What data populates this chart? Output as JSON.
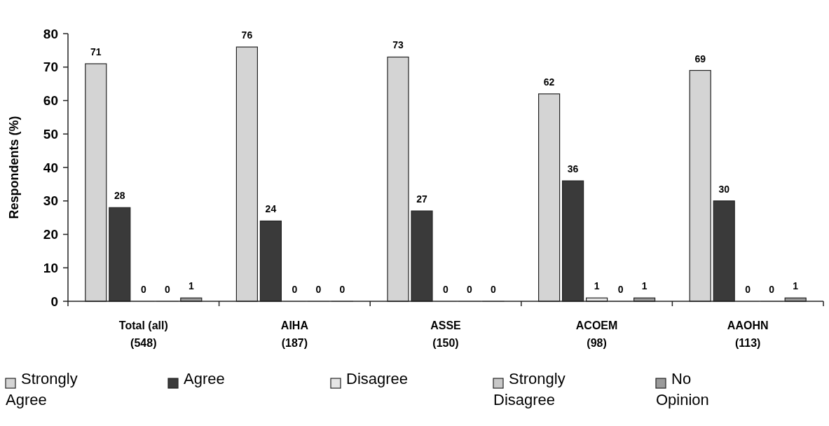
{
  "chart_data": {
    "type": "bar",
    "ylabel": "Respondents (%)",
    "categories": [
      "Total (all)\n(548)",
      "AIHA\n(187)",
      "ASSE\n(150)",
      "ACOEM\n(98)",
      "AAOHN\n(113)"
    ],
    "series": [
      {
        "name": "Strongly Agree",
        "color": "#d4d4d4",
        "values": [
          71,
          76,
          73,
          62,
          69
        ]
      },
      {
        "name": "Agree",
        "color": "#3a3a3a",
        "values": [
          28,
          24,
          27,
          36,
          30
        ]
      },
      {
        "name": "Disagree",
        "color": "#e6e6e6",
        "values": [
          0,
          0,
          0,
          1,
          0
        ]
      },
      {
        "name": "Strongly Disagree",
        "color": "#c8c8c8",
        "values": [
          0,
          0,
          0,
          0,
          0
        ]
      },
      {
        "name": "No Opinion",
        "color": "#9a9a9a",
        "values": [
          1,
          0,
          0,
          1,
          1
        ]
      }
    ],
    "ylim": [
      0,
      80
    ],
    "yticks": [
      0,
      10,
      20,
      30,
      40,
      50,
      60,
      70,
      80
    ],
    "data_labels": true,
    "legend": "bottom"
  }
}
